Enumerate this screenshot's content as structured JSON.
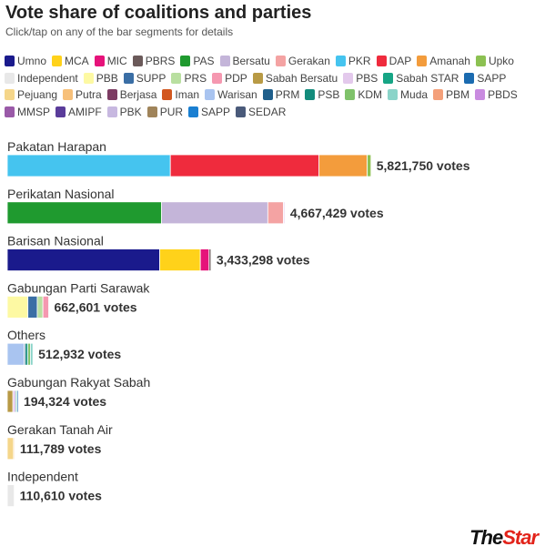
{
  "header": {
    "title": "Vote share of coalitions and parties",
    "subtitle": "Click/tap on any of the bar segments for details"
  },
  "brand": {
    "part1": "The",
    "part2": "Star"
  },
  "value_suffix": " votes",
  "legend": [
    {
      "name": "Umno",
      "color": "#1a1a8c"
    },
    {
      "name": "MCA",
      "color": "#ffd21a"
    },
    {
      "name": "MIC",
      "color": "#e6137a"
    },
    {
      "name": "PBRS",
      "color": "#6b5a5a"
    },
    {
      "name": "PAS",
      "color": "#1f9a2f"
    },
    {
      "name": "Bersatu",
      "color": "#c4b5d9"
    },
    {
      "name": "Gerakan",
      "color": "#f4a3a3"
    },
    {
      "name": "PKR",
      "color": "#45c4ef"
    },
    {
      "name": "DAP",
      "color": "#ef2b3d"
    },
    {
      "name": "Amanah",
      "color": "#f39c3c"
    },
    {
      "name": "Upko",
      "color": "#8cc152"
    },
    {
      "name": "Independent",
      "color": "#e8e8e8"
    },
    {
      "name": "PBB",
      "color": "#fdf9a3"
    },
    {
      "name": "SUPP",
      "color": "#3a6ea5"
    },
    {
      "name": "PRS",
      "color": "#b9dfa0"
    },
    {
      "name": "PDP",
      "color": "#f598b0"
    },
    {
      "name": "Sabah Bersatu",
      "color": "#b89a45"
    },
    {
      "name": "PBS",
      "color": "#e3c9ec"
    },
    {
      "name": "Sabah STAR",
      "color": "#16a585"
    },
    {
      "name": "SAPP",
      "color": "#1b6bb0"
    },
    {
      "name": "Pejuang",
      "color": "#f5d68a"
    },
    {
      "name": "Putra",
      "color": "#f7c07a"
    },
    {
      "name": "Berjasa",
      "color": "#7d3c63"
    },
    {
      "name": "Iman",
      "color": "#d2571f"
    },
    {
      "name": "Warisan",
      "color": "#a9c4f0"
    },
    {
      "name": "PRM",
      "color": "#1f5f8b"
    },
    {
      "name": "PSB",
      "color": "#138c7c"
    },
    {
      "name": "KDM",
      "color": "#7fc26a"
    },
    {
      "name": "Muda",
      "color": "#8ad4c9"
    },
    {
      "name": "PBM",
      "color": "#f4a07a"
    },
    {
      "name": "PBDS",
      "color": "#c98be0"
    },
    {
      "name": "MMSP",
      "color": "#9a5aa8"
    },
    {
      "name": "AMIPF",
      "color": "#5a3c9a"
    },
    {
      "name": "PBK",
      "color": "#c7b8e0"
    },
    {
      "name": "PUR",
      "color": "#a0845a"
    },
    {
      "name": "SAPP",
      "color": "#1a7fd1"
    },
    {
      "name": "SEDAR",
      "color": "#4a5a7a"
    }
  ],
  "chart_data": {
    "type": "bar",
    "orientation": "horizontal",
    "stacked": true,
    "title": "Vote share of coalitions and parties",
    "subtitle": "Click/tap on any of the bar segments for details",
    "xlim": [
      0,
      6000000
    ],
    "grid": false,
    "legend_position": "top",
    "categories": [
      "Pakatan Harapan",
      "Perikatan Nasional",
      "Barisan Nasional",
      "Gabungan Parti Sarawak",
      "Others",
      "Gabungan Rakyat Sabah",
      "Gerakan Tanah Air",
      "Independent"
    ],
    "totals": [
      5821750,
      4667429,
      3433298,
      662601,
      512932,
      194324,
      111789,
      110610
    ],
    "total_labels": [
      "5,821,750 votes",
      "4,667,429 votes",
      "3,433,298 votes",
      "662,601 votes",
      "512,932 votes",
      "194,324 votes",
      "111,789 votes",
      "110,610 votes"
    ],
    "segments": [
      [
        {
          "party": "PKR",
          "value": 2610000,
          "color": "#45c4ef"
        },
        {
          "party": "DAP",
          "value": 2380000,
          "color": "#ef2b3d"
        },
        {
          "party": "Amanah",
          "value": 770000,
          "color": "#f39c3c"
        },
        {
          "party": "Upko",
          "value": 61750,
          "color": "#8cc152"
        }
      ],
      [
        {
          "party": "PAS",
          "value": 2470000,
          "color": "#1f9a2f"
        },
        {
          "party": "Bersatu",
          "value": 1700000,
          "color": "#c4b5d9"
        },
        {
          "party": "Gerakan",
          "value": 250000,
          "color": "#f4a3a3"
        },
        {
          "party": "PBS",
          "value": 20000,
          "color": "#e3c9ec"
        }
      ],
      [
        {
          "party": "Umno",
          "value": 2440000,
          "color": "#1a1a8c"
        },
        {
          "party": "MCA",
          "value": 650000,
          "color": "#ffd21a"
        },
        {
          "party": "MIC",
          "value": 140000,
          "color": "#e6137a"
        },
        {
          "party": "PBRS",
          "value": 30000,
          "color": "#6b5a5a"
        }
      ],
      [
        {
          "party": "PBB",
          "value": 330000,
          "color": "#fdf9a3"
        },
        {
          "party": "SUPP",
          "value": 150000,
          "color": "#3a6ea5"
        },
        {
          "party": "PRS",
          "value": 90000,
          "color": "#b9dfa0"
        },
        {
          "party": "PDP",
          "value": 92601,
          "color": "#f598b0"
        }
      ],
      [
        {
          "party": "Warisan",
          "value": 270000,
          "color": "#a9c4f0"
        },
        {
          "party": "PRM",
          "value": 20000,
          "color": "#1f5f8b"
        },
        {
          "party": "PSB",
          "value": 40000,
          "color": "#138c7c"
        },
        {
          "party": "KDM",
          "value": 40000,
          "color": "#7fc26a"
        },
        {
          "party": "Muda",
          "value": 40000,
          "color": "#8ad4c9"
        }
      ],
      [
        {
          "party": "Sabah Bersatu",
          "value": 90000,
          "color": "#b89a45"
        },
        {
          "party": "PBS",
          "value": 45000,
          "color": "#e3c9ec"
        },
        {
          "party": "Sabah STAR",
          "value": 20000,
          "color": "#16a585"
        },
        {
          "party": "SAPP",
          "value": 20000,
          "color": "#1b6bb0"
        }
      ],
      [
        {
          "party": "Pejuang",
          "value": 100000,
          "color": "#f5d68a"
        },
        {
          "party": "Putra",
          "value": 11789,
          "color": "#f7c07a"
        }
      ],
      [
        {
          "party": "Independent",
          "value": 110610,
          "color": "#e8e8e8"
        }
      ]
    ]
  }
}
